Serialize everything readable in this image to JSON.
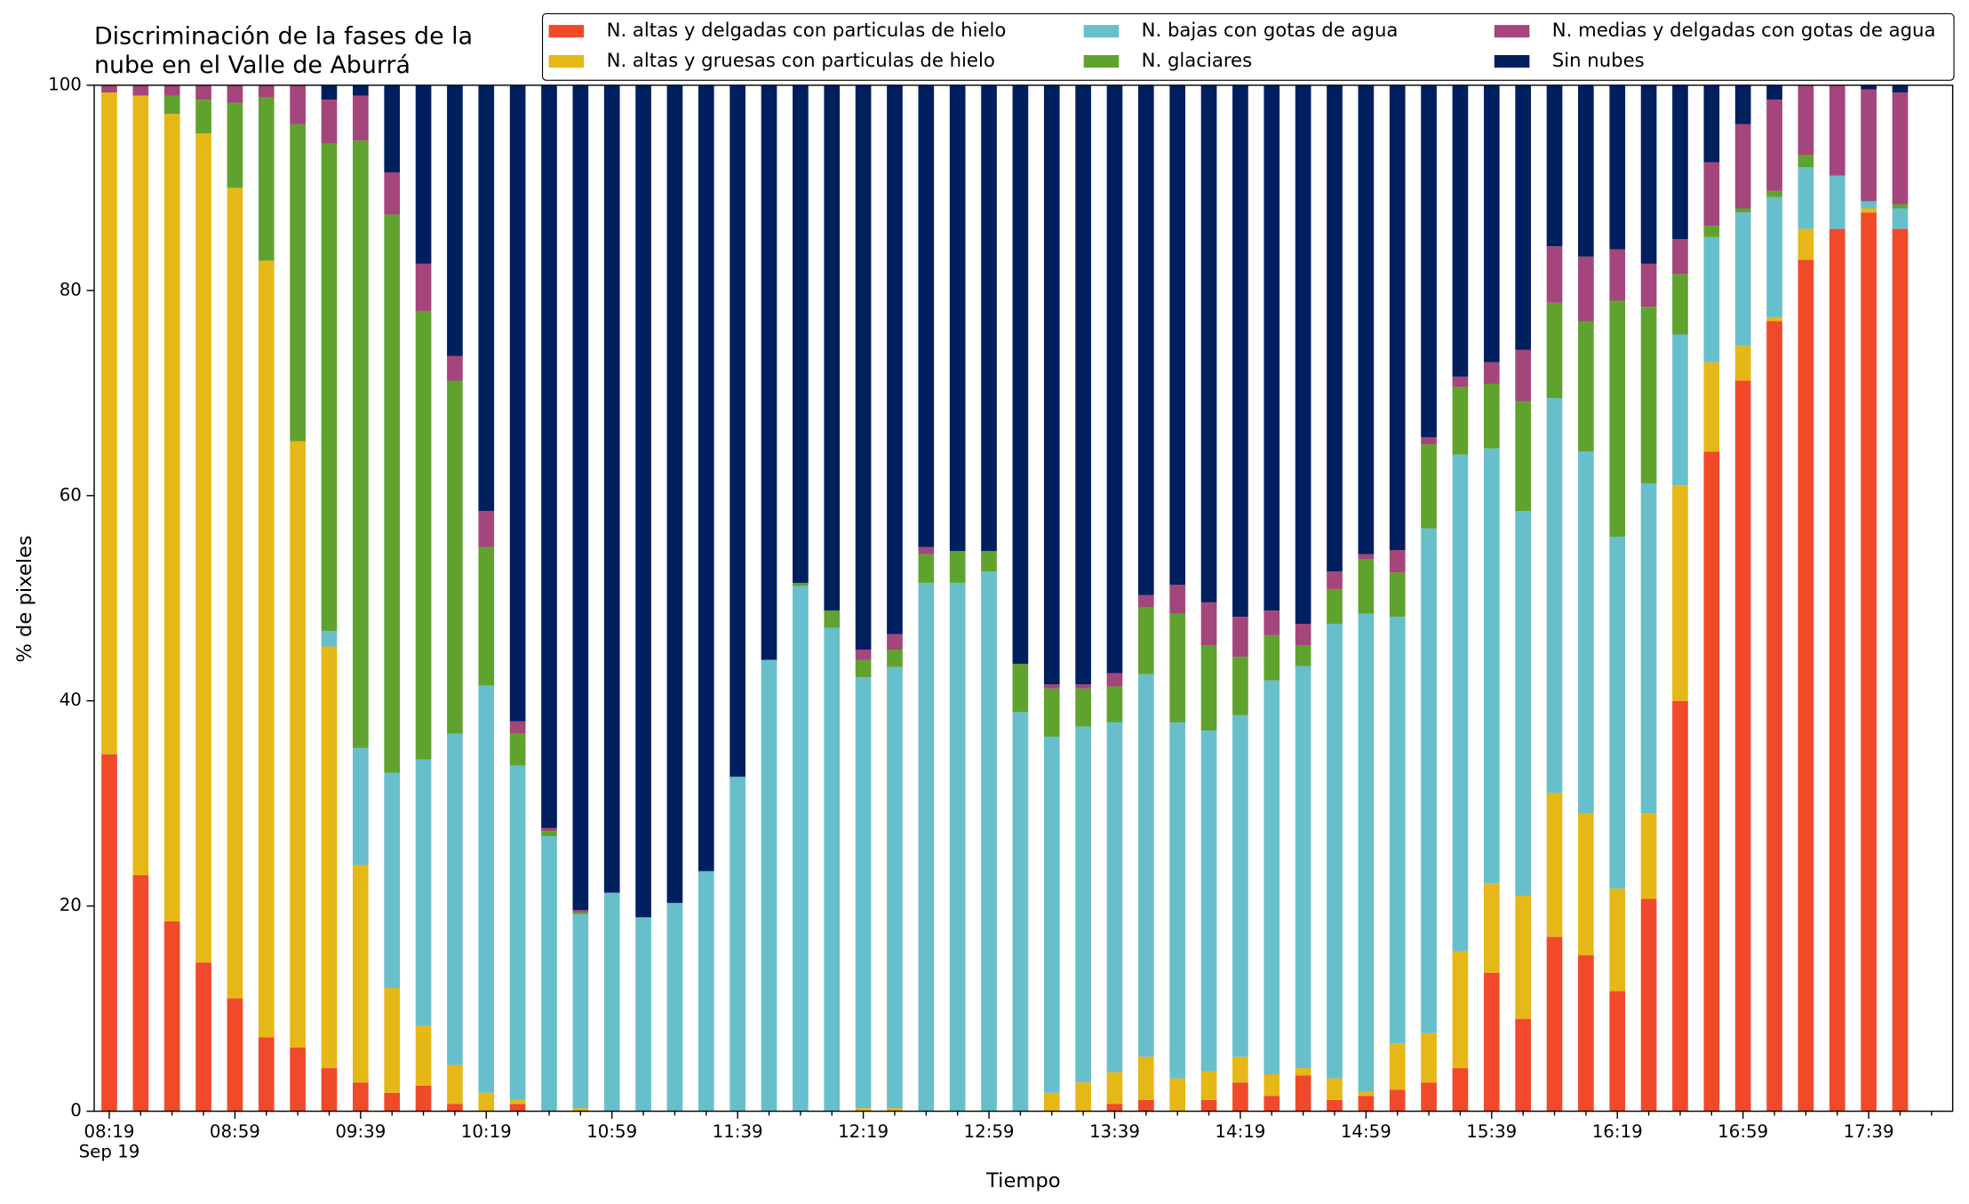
{
  "chart_data": {
    "type": "stacked_bar",
    "title": [
      "Discriminación de la fases de la",
      "nube en el Valle de Aburrá"
    ],
    "x_label": "Tiempo",
    "y_label": "% de pixeles",
    "x_date_label": "Sep 19",
    "categories": [
      "08:19",
      null,
      null,
      null,
      "08:59",
      null,
      null,
      null,
      "09:39",
      null,
      null,
      null,
      "10:19",
      null,
      null,
      null,
      "10:59",
      null,
      null,
      null,
      "11:39",
      null,
      null,
      null,
      "12:19",
      null,
      null,
      null,
      "12:59",
      null,
      null,
      null,
      "13:39",
      null,
      null,
      null,
      "14:19",
      null,
      null,
      null,
      "14:59",
      null,
      null,
      null,
      "15:39",
      null,
      null,
      null,
      "16:19",
      null,
      null,
      null,
      "16:59",
      null,
      null,
      null,
      "17:39",
      null
    ],
    "ylim": [
      0,
      100
    ],
    "yticks": [
      0,
      20,
      40,
      60,
      80,
      100
    ],
    "grid": false,
    "legend": "top",
    "series": [
      {
        "name": "N. altas y delgadas con particulas de hielo",
        "color": "#f04a2a",
        "values": [
          34.8,
          23,
          18.5,
          14.5,
          11,
          7.2,
          6.2,
          4.2,
          2.8,
          1.8,
          2.5,
          0.7,
          0,
          0.7,
          0,
          0,
          0,
          0,
          0,
          0,
          0,
          0,
          0,
          0,
          0,
          0,
          0,
          0,
          0,
          0,
          0,
          0,
          0.7,
          1.1,
          0,
          1.1,
          2.8,
          1.5,
          3.5,
          1.1,
          1.5,
          2.1,
          2.8,
          4.2,
          13.5,
          9,
          17,
          15.2,
          11.7,
          20.7,
          40,
          64.3,
          71.2,
          77,
          83,
          86,
          87.6,
          86
        ]
      },
      {
        "name": "N. altas y gruesas con particulas de hielo",
        "color": "#e6b817",
        "values": [
          64.5,
          76,
          78.7,
          80.8,
          79,
          75.7,
          59.1,
          41.1,
          21.2,
          10.2,
          5.8,
          3.8,
          1.8,
          0.4,
          0,
          0.3,
          0,
          0,
          0,
          0,
          0,
          0,
          0,
          0,
          0.3,
          0.3,
          0,
          0,
          0,
          0,
          1.8,
          2.8,
          3.1,
          4.2,
          3.2,
          2.8,
          2.5,
          2.1,
          0.7,
          2.1,
          0.4,
          4.5,
          4.8,
          11.4,
          8.7,
          12,
          14,
          13.8,
          10,
          8.3,
          21,
          8.7,
          3.4,
          0.4,
          3,
          0,
          0.4,
          0
        ]
      },
      {
        "name": "N. bajas con gotas de agua",
        "color": "#67bfcc",
        "values": [
          0,
          0,
          0,
          0,
          0,
          0,
          0,
          1.5,
          11.4,
          21,
          26,
          32.3,
          39.7,
          32.6,
          26.8,
          18.9,
          21.3,
          18.9,
          20.3,
          23.4,
          32.6,
          44,
          51.2,
          47.1,
          42,
          43,
          51.5,
          51.5,
          52.6,
          38.9,
          34.7,
          34.7,
          34.1,
          37.3,
          34.7,
          33.2,
          33.3,
          38.4,
          39.2,
          44.3,
          46.6,
          41.6,
          49.2,
          48.4,
          42.4,
          37.5,
          38.5,
          35.3,
          34.3,
          32.2,
          14.7,
          12.2,
          13,
          11.7,
          6,
          5.2,
          0.7,
          2
        ]
      },
      {
        "name": "N. glaciares",
        "color": "#5fa32e",
        "values": [
          0,
          0,
          1.8,
          3.3,
          8.3,
          15.9,
          30.9,
          47.5,
          59.2,
          54.4,
          43.7,
          34.4,
          13.5,
          3.1,
          0.5,
          0.2,
          0,
          0,
          0,
          0,
          0,
          0,
          0.3,
          1.7,
          1.7,
          1.7,
          2.8,
          3.1,
          2,
          4.7,
          4.7,
          3.7,
          3.5,
          6.5,
          10.6,
          8.3,
          5.7,
          4.4,
          2,
          3.4,
          5.3,
          4.3,
          8.2,
          6.6,
          6.3,
          10.7,
          9.3,
          12.7,
          23,
          17.2,
          5.9,
          1.1,
          0.4,
          0.6,
          1.2,
          0,
          0,
          0.4
        ]
      },
      {
        "name": "N. medias y delgadas con gotas de agua",
        "color": "#a4457c",
        "values": [
          0.7,
          1,
          1,
          1.4,
          1.7,
          1.2,
          3.8,
          4.3,
          4.4,
          4.1,
          4.6,
          2.4,
          3.5,
          1.2,
          0.3,
          0.2,
          0,
          0,
          0,
          0,
          0,
          0,
          0,
          0,
          1,
          1.5,
          0.7,
          0,
          0,
          0,
          0.4,
          0.4,
          1.3,
          1.2,
          2.8,
          4.2,
          3.9,
          2.4,
          2.1,
          1.7,
          0.5,
          2.2,
          0.7,
          1,
          2.1,
          5,
          5.5,
          6.3,
          5,
          4.2,
          3.4,
          6.2,
          8.2,
          8.9,
          6.8,
          8.8,
          10.9,
          10.9
        ]
      },
      {
        "name": "Sin nubes",
        "color": "#001f5f",
        "values": [
          0,
          0,
          0,
          0,
          0,
          0,
          0,
          1.4,
          1,
          8.5,
          17.4,
          26.4,
          41.5,
          62,
          72.4,
          80.4,
          78.7,
          81.1,
          79.7,
          76.6,
          67.4,
          56,
          48.5,
          51.2,
          55,
          53.5,
          45,
          45.4,
          45.4,
          56.4,
          58.4,
          58.4,
          57.3,
          49.7,
          48.7,
          50.4,
          51.8,
          51.2,
          52.5,
          47.4,
          45.7,
          45.3,
          34.3,
          28.4,
          27,
          25.8,
          15.7,
          16.7,
          16,
          17.4,
          15,
          7.5,
          3.8,
          1.4,
          0,
          0,
          0.4,
          0.7
        ]
      }
    ]
  }
}
